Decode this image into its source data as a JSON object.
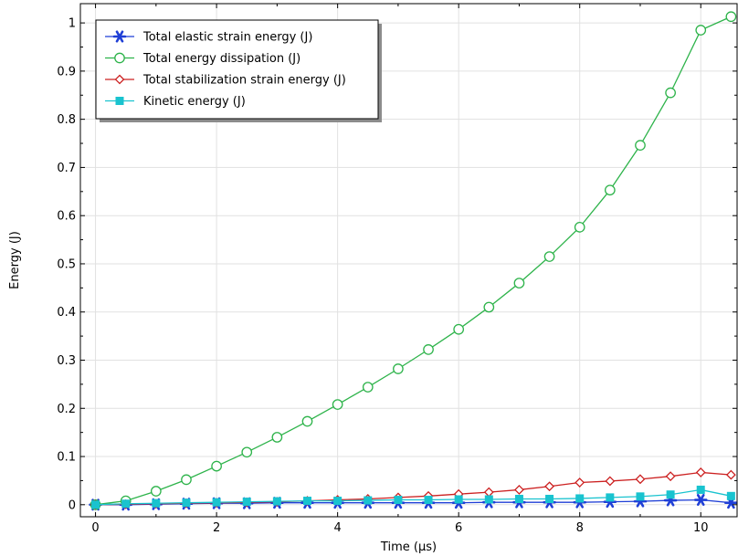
{
  "chart_data": {
    "type": "line",
    "xlabel": "Time (µs)",
    "ylabel": "Energy (J)",
    "xlim": [
      -0.25,
      10.6
    ],
    "ylim": [
      -0.025,
      1.04
    ],
    "xticks": [
      0,
      2,
      4,
      6,
      8,
      10
    ],
    "yticks": [
      0,
      0.1,
      0.2,
      0.3,
      0.4,
      0.5,
      0.6,
      0.7,
      0.8,
      0.9,
      1
    ],
    "grid": true,
    "legend_position": "top-left",
    "x": [
      0,
      0.5,
      1,
      1.5,
      2,
      2.5,
      3,
      3.5,
      4,
      4.5,
      5,
      5.5,
      6,
      6.5,
      7,
      7.5,
      8,
      8.5,
      9,
      9.5,
      10,
      10.5
    ],
    "series": [
      {
        "name": "Total elastic strain energy (J)",
        "color": "#1f3fd6",
        "marker": "asterisk",
        "values": [
          0,
          0,
          0.001,
          0.002,
          0.003,
          0.003,
          0.004,
          0.004,
          0.004,
          0.004,
          0.004,
          0.004,
          0.004,
          0.005,
          0.005,
          0.005,
          0.005,
          0.006,
          0.007,
          0.009,
          0.01,
          0.004
        ]
      },
      {
        "name": "Total energy dissipation (J)",
        "color": "#2db34a",
        "marker": "circle",
        "values": [
          0,
          0.008,
          0.028,
          0.052,
          0.08,
          0.109,
          0.14,
          0.173,
          0.208,
          0.244,
          0.282,
          0.322,
          0.364,
          0.41,
          0.46,
          0.515,
          0.576,
          0.653,
          0.746,
          0.855,
          0.985,
          1.013
        ]
      },
      {
        "name": "Total stabilization strain energy (J)",
        "color": "#cc2020",
        "marker": "diamond",
        "values": [
          0,
          0.001,
          0.002,
          0.003,
          0.004,
          0.005,
          0.006,
          0.008,
          0.01,
          0.012,
          0.015,
          0.018,
          0.022,
          0.026,
          0.031,
          0.038,
          0.046,
          0.049,
          0.053,
          0.059,
          0.067,
          0.062
        ]
      },
      {
        "name": "Kinetic energy (J)",
        "color": "#19c3cf",
        "marker": "square",
        "values": [
          0,
          0.002,
          0.003,
          0.004,
          0.005,
          0.006,
          0.007,
          0.008,
          0.008,
          0.009,
          0.01,
          0.01,
          0.011,
          0.011,
          0.012,
          0.012,
          0.013,
          0.015,
          0.017,
          0.021,
          0.031,
          0.018
        ]
      }
    ]
  }
}
